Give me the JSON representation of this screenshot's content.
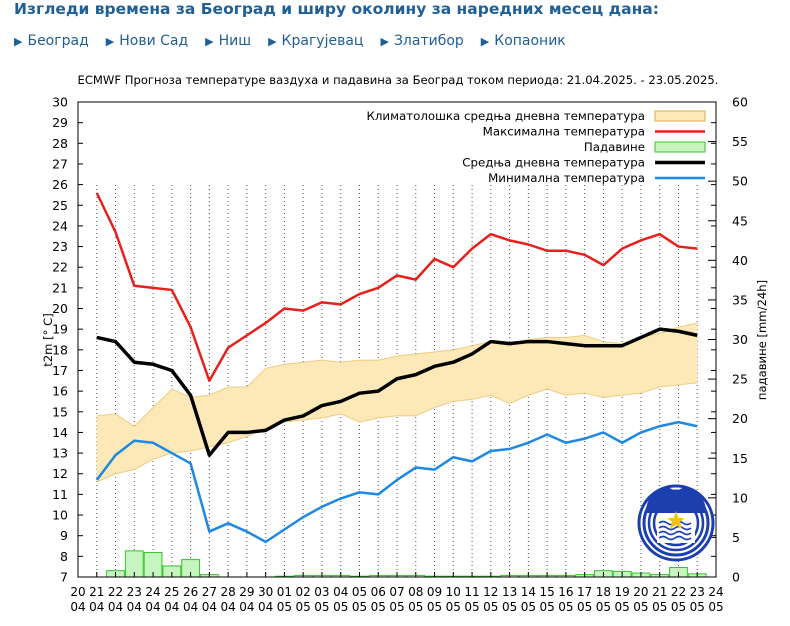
{
  "header": {
    "title": "Изгледи времена за Београд и ширу околину за наредних месец дана:"
  },
  "nav": {
    "arrow": "▶",
    "cities": [
      "Београд",
      "Нови Сад",
      "Ниш",
      "Крагујевац",
      "Златибор",
      "Копаоник"
    ]
  },
  "colors": {
    "max": "#e8201c",
    "mean": "#000000",
    "min": "#1e88e5",
    "clim_fill": "#fde9b8",
    "clim_edge": "#e2b04c",
    "precip_fill": "#c6f5c0",
    "precip_edge": "#35c52b",
    "nav_text": "#1f5f96"
  },
  "chart_data": {
    "type": "line",
    "title": "ECMWF Прогноза температуре ваздуха и падавина за Београд током периода: 21.04.2025. - 23.05.2025.",
    "ylabel": "t2m [° C]",
    "y2label": "падавине [mm/24h]",
    "ylim": [
      7,
      30
    ],
    "y2lim": [
      0,
      60
    ],
    "y_ticks": [
      "7",
      "8",
      "9",
      "10",
      "11",
      "12",
      "13",
      "14",
      "15",
      "16",
      "17",
      "18",
      "19",
      "20",
      "21",
      "22",
      "23",
      "24",
      "25",
      "26",
      "27",
      "28",
      "29",
      "30"
    ],
    "y2_ticks": [
      "0",
      "5",
      "10",
      "15",
      "20",
      "25",
      "30",
      "35",
      "40",
      "45",
      "50",
      "55",
      "60"
    ],
    "x_ticks": [
      {
        "day": "20",
        "month": "04"
      },
      {
        "day": "21",
        "month": "04"
      },
      {
        "day": "22",
        "month": "04"
      },
      {
        "day": "23",
        "month": "04"
      },
      {
        "day": "24",
        "month": "04"
      },
      {
        "day": "25",
        "month": "04"
      },
      {
        "day": "26",
        "month": "04"
      },
      {
        "day": "27",
        "month": "04"
      },
      {
        "day": "28",
        "month": "04"
      },
      {
        "day": "29",
        "month": "04"
      },
      {
        "day": "30",
        "month": "04"
      },
      {
        "day": "01",
        "month": "05"
      },
      {
        "day": "02",
        "month": "05"
      },
      {
        "day": "03",
        "month": "05"
      },
      {
        "day": "04",
        "month": "05"
      },
      {
        "day": "05",
        "month": "05"
      },
      {
        "day": "06",
        "month": "05"
      },
      {
        "day": "07",
        "month": "05"
      },
      {
        "day": "08",
        "month": "05"
      },
      {
        "day": "09",
        "month": "05"
      },
      {
        "day": "10",
        "month": "05"
      },
      {
        "day": "11",
        "month": "05"
      },
      {
        "day": "12",
        "month": "05"
      },
      {
        "day": "13",
        "month": "05"
      },
      {
        "day": "14",
        "month": "05"
      },
      {
        "day": "15",
        "month": "05"
      },
      {
        "day": "16",
        "month": "05"
      },
      {
        "day": "17",
        "month": "05"
      },
      {
        "day": "18",
        "month": "05"
      },
      {
        "day": "19",
        "month": "05"
      },
      {
        "day": "20",
        "month": "05"
      },
      {
        "day": "21",
        "month": "05"
      },
      {
        "day": "22",
        "month": "05"
      },
      {
        "day": "23",
        "month": "05"
      },
      {
        "day": "24",
        "month": "05"
      }
    ],
    "legend": [
      {
        "label": "Климатолошка средња дневна температура",
        "kind": "band"
      },
      {
        "label": "Максимална температура",
        "kind": "max"
      },
      {
        "label": "Падавине",
        "kind": "precip"
      },
      {
        "label": "Средња дневна температура",
        "kind": "mean"
      },
      {
        "label": "Минимална температура",
        "kind": "min"
      }
    ],
    "legend_position": "top-right",
    "grid": "vertical-dotted",
    "x_days": [
      21,
      22,
      23,
      24,
      25,
      26,
      27,
      28,
      29,
      30,
      31,
      32,
      33,
      34,
      35,
      36,
      37,
      38,
      39,
      40,
      41,
      42,
      43,
      44,
      45,
      46,
      47,
      48,
      49,
      50,
      51,
      52,
      53
    ],
    "series": [
      {
        "name": "Максимална температура",
        "key": "max",
        "values": [
          25.6,
          23.7,
          21.1,
          21.0,
          20.9,
          19.1,
          16.5,
          18.1,
          18.7,
          19.3,
          20.0,
          19.9,
          20.3,
          20.2,
          20.7,
          21.0,
          21.6,
          21.4,
          22.4,
          22.0,
          22.9,
          23.6,
          23.3,
          23.1,
          22.8,
          22.8,
          22.6,
          22.1,
          22.9,
          23.3,
          23.6,
          23.0,
          22.9
        ]
      },
      {
        "name": "Средња дневна температура",
        "key": "mean",
        "values": [
          18.6,
          18.4,
          17.4,
          17.3,
          17.0,
          15.8,
          12.9,
          14.0,
          14.0,
          14.1,
          14.6,
          14.8,
          15.3,
          15.5,
          15.9,
          16.0,
          16.6,
          16.8,
          17.2,
          17.4,
          17.8,
          18.4,
          18.3,
          18.4,
          18.4,
          18.3,
          18.2,
          18.2,
          18.2,
          18.6,
          19.0,
          18.9,
          18.7
        ]
      },
      {
        "name": "Минимална температура",
        "key": "min",
        "values": [
          11.7,
          12.9,
          13.6,
          13.5,
          13.0,
          12.5,
          9.2,
          9.6,
          9.2,
          8.7,
          9.3,
          9.9,
          10.4,
          10.8,
          11.1,
          11.0,
          11.7,
          12.3,
          12.2,
          12.8,
          12.6,
          13.1,
          13.2,
          13.5,
          13.9,
          13.5,
          13.7,
          14.0,
          13.5,
          14.0,
          14.3,
          14.5,
          14.3
        ]
      },
      {
        "name": "Климатолошка средња дневна температура",
        "key": "clim",
        "upper": [
          14.8,
          14.9,
          14.3,
          15.2,
          16.1,
          15.7,
          15.8,
          16.2,
          16.2,
          17.1,
          17.3,
          17.4,
          17.5,
          17.4,
          17.5,
          17.5,
          17.7,
          17.8,
          17.9,
          18.0,
          18.2,
          18.4,
          18.3,
          18.5,
          18.6,
          18.6,
          18.7,
          18.4,
          18.3,
          18.6,
          18.8,
          19.1,
          19.3
        ],
        "lower": [
          11.6,
          12.0,
          12.2,
          12.7,
          13.0,
          13.1,
          13.3,
          13.5,
          13.8,
          14.2,
          14.5,
          14.6,
          14.7,
          14.9,
          14.5,
          14.7,
          14.8,
          14.8,
          15.2,
          15.5,
          15.6,
          15.8,
          15.4,
          15.8,
          16.1,
          15.8,
          15.9,
          15.7,
          15.8,
          15.9,
          16.2,
          16.3,
          16.4
        ]
      },
      {
        "name": "Падавине",
        "key": "precip",
        "values": [
          0.0,
          0.8,
          3.3,
          3.1,
          1.4,
          2.2,
          0.3,
          0.0,
          0.0,
          0.0,
          0.1,
          0.2,
          0.2,
          0.2,
          0.1,
          0.2,
          0.2,
          0.2,
          0.1,
          0.1,
          0.1,
          0.1,
          0.2,
          0.2,
          0.2,
          0.2,
          0.3,
          0.8,
          0.7,
          0.5,
          0.3,
          1.2,
          0.4
        ]
      }
    ]
  }
}
